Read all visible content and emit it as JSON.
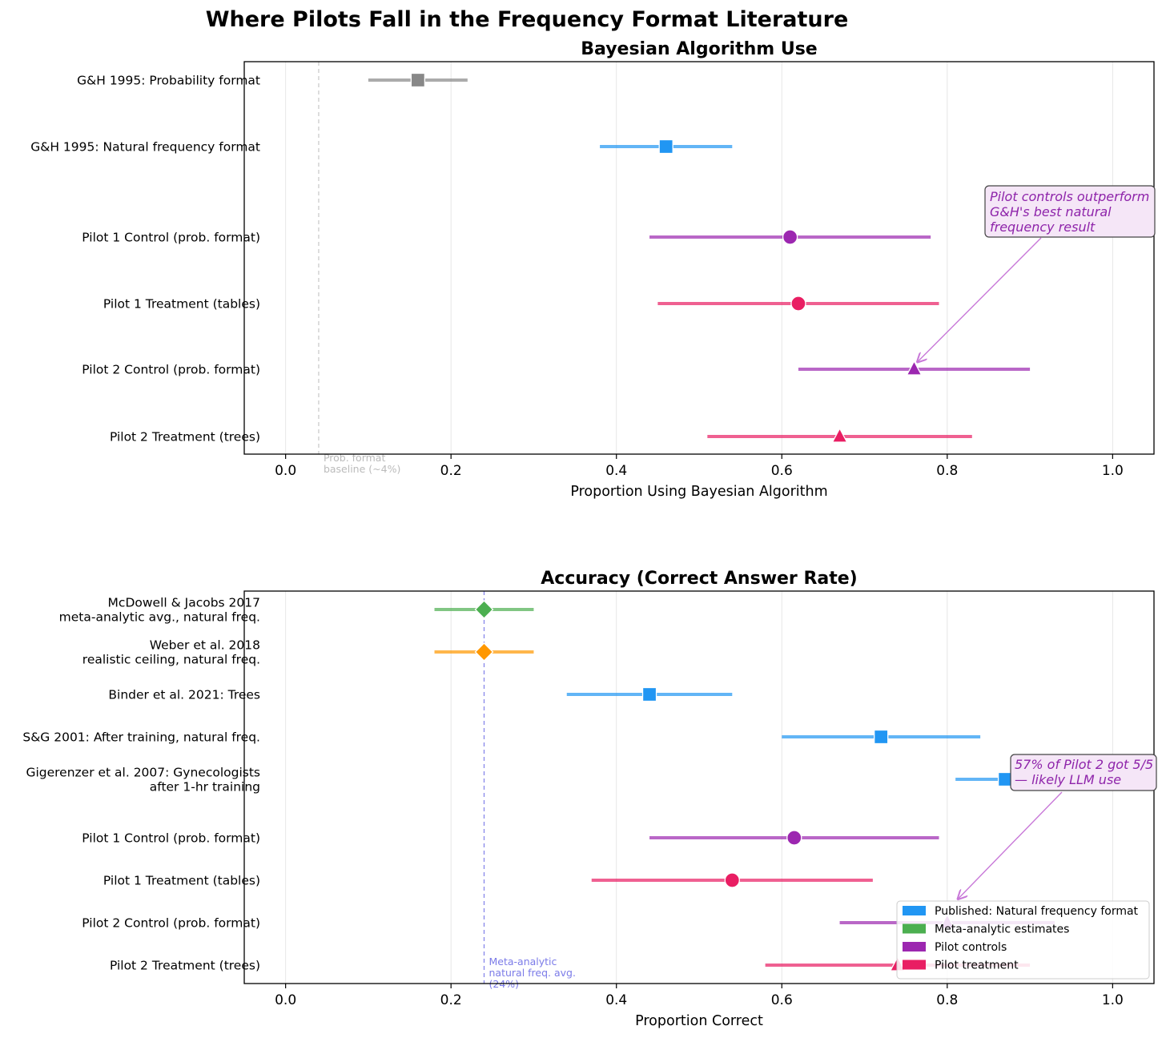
{
  "figure": {
    "title": "Where Pilots Fall in the Frequency Format Literature"
  },
  "chart_data": [
    {
      "type": "scatter",
      "subtype": "forest-plot",
      "title": "Bayesian Algorithm Use",
      "xlabel": "Proportion Using Bayesian Algorithm",
      "xlim": [
        -0.05,
        1.05
      ],
      "xticks": [
        0.0,
        0.2,
        0.4,
        0.6,
        0.8,
        1.0
      ],
      "xtick_labels": [
        "0.0",
        "0.2",
        "0.4",
        "0.6",
        "0.8",
        "1.0"
      ],
      "grid": "x",
      "rows": [
        {
          "label": "G&H 1995: Probability format",
          "value": 0.16,
          "ci": [
            0.1,
            0.22
          ],
          "group": "published-prob",
          "marker": "square",
          "color": "#888888"
        },
        {
          "label": "G&H 1995: Natural frequency format",
          "value": 0.46,
          "ci": [
            0.38,
            0.54
          ],
          "group": "published",
          "marker": "square",
          "color": "#2196f3"
        },
        {
          "label": "Pilot 1 Control (prob. format)",
          "value": 0.61,
          "ci": [
            0.44,
            0.78
          ],
          "group": "pilot-control",
          "marker": "circle",
          "color": "#9c27b0"
        },
        {
          "label": "Pilot 1 Treatment (tables)",
          "value": 0.62,
          "ci": [
            0.45,
            0.79
          ],
          "group": "pilot-treatment",
          "marker": "circle",
          "color": "#e91e63"
        },
        {
          "label": "Pilot 2 Control (prob. format)",
          "value": 0.76,
          "ci": [
            0.62,
            0.9
          ],
          "group": "pilot-control",
          "marker": "triangle",
          "color": "#9c27b0"
        },
        {
          "label": "Pilot 2 Treatment (trees)",
          "value": 0.67,
          "ci": [
            0.51,
            0.83
          ],
          "group": "pilot-treatment",
          "marker": "triangle",
          "color": "#e91e63"
        }
      ],
      "reference_line": {
        "x": 0.04,
        "label_lines": [
          "Prob. format",
          "baseline (~4%)"
        ],
        "color": "#bbbbbb"
      },
      "annotation": {
        "lines": [
          "Pilot controls outperform",
          "G&H's best natural",
          "frequency result"
        ],
        "target_row": 4,
        "target_value": 0.76
      }
    },
    {
      "type": "scatter",
      "subtype": "forest-plot",
      "title": "Accuracy (Correct Answer Rate)",
      "xlabel": "Proportion Correct",
      "xlim": [
        -0.05,
        1.05
      ],
      "xticks": [
        0.0,
        0.2,
        0.4,
        0.6,
        0.8,
        1.0
      ],
      "xtick_labels": [
        "0.0",
        "0.2",
        "0.4",
        "0.6",
        "0.8",
        "1.0"
      ],
      "grid": "x",
      "rows": [
        {
          "label_lines": [
            "McDowell & Jacobs 2017",
            "meta-analytic avg., natural freq."
          ],
          "value": 0.24,
          "ci": [
            0.18,
            0.3
          ],
          "group": "meta",
          "marker": "diamond",
          "color": "#4caf50"
        },
        {
          "label_lines": [
            "Weber et al. 2018",
            "realistic ceiling, natural freq."
          ],
          "value": 0.24,
          "ci": [
            0.18,
            0.3
          ],
          "group": "meta",
          "marker": "diamond",
          "color": "#ff9800"
        },
        {
          "label_lines": [
            "Binder et al. 2021: Trees"
          ],
          "value": 0.44,
          "ci": [
            0.34,
            0.54
          ],
          "group": "published",
          "marker": "square",
          "color": "#2196f3"
        },
        {
          "label_lines": [
            "S&G 2001: After training, natural freq."
          ],
          "value": 0.72,
          "ci": [
            0.6,
            0.84
          ],
          "group": "published",
          "marker": "square",
          "color": "#2196f3"
        },
        {
          "label_lines": [
            "Gigerenzer et al. 2007: Gynecologists",
            "after 1-hr training"
          ],
          "value": 0.87,
          "ci": [
            0.81,
            0.93
          ],
          "group": "published",
          "marker": "square",
          "color": "#2196f3"
        },
        {
          "label_lines": [
            "Pilot 1 Control (prob. format)"
          ],
          "value": 0.615,
          "ci": [
            0.44,
            0.79
          ],
          "group": "pilot-control",
          "marker": "circle",
          "color": "#9c27b0"
        },
        {
          "label_lines": [
            "Pilot 1 Treatment (tables)"
          ],
          "value": 0.54,
          "ci": [
            0.37,
            0.71
          ],
          "group": "pilot-treatment",
          "marker": "circle",
          "color": "#e91e63"
        },
        {
          "label_lines": [
            "Pilot 2 Control (prob. format)"
          ],
          "value": 0.8,
          "ci": [
            0.67,
            0.93
          ],
          "group": "pilot-control",
          "marker": "triangle",
          "color": "#9c27b0"
        },
        {
          "label_lines": [
            "Pilot 2 Treatment (trees)"
          ],
          "value": 0.74,
          "ci": [
            0.58,
            0.9
          ],
          "group": "pilot-treatment",
          "marker": "triangle",
          "color": "#e91e63"
        }
      ],
      "reference_line": {
        "x": 0.24,
        "label_lines": [
          "Meta-analytic",
          "natural freq. avg.",
          "(24%)"
        ],
        "color": "#7b7be8"
      },
      "annotation": {
        "lines": [
          "57% of Pilot 2 got 5/5",
          "— likely LLM use"
        ],
        "target_value": 0.81,
        "target_row": 6.5
      },
      "legend": {
        "placement": "lower right",
        "entries": [
          {
            "label": "Published: Natural frequency format",
            "color": "#2196f3"
          },
          {
            "label": "Meta-analytic estimates",
            "color": "#4caf50"
          },
          {
            "label": "Pilot controls",
            "color": "#9c27b0"
          },
          {
            "label": "Pilot treatment",
            "color": "#e91e63"
          }
        ]
      }
    }
  ]
}
